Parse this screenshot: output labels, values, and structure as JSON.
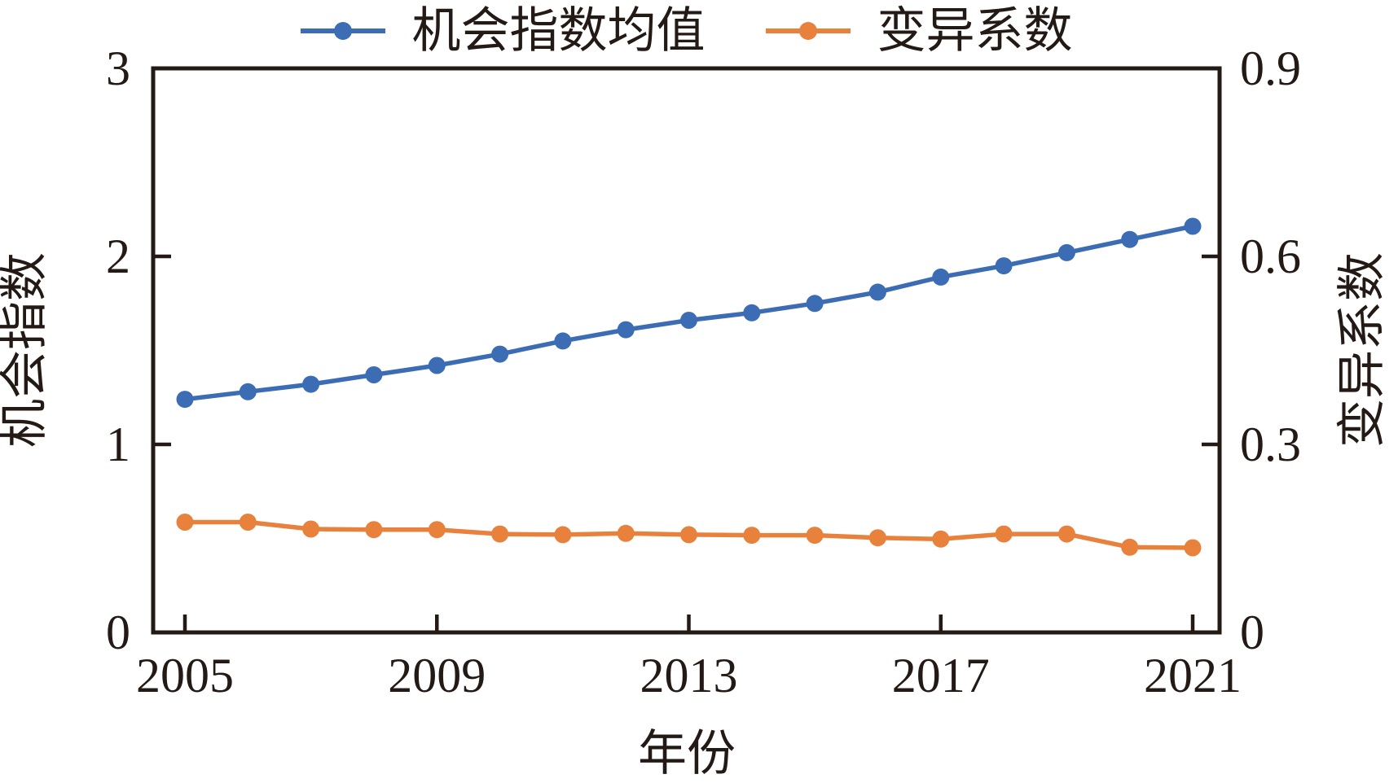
{
  "chart_data": {
    "type": "line",
    "grid": false,
    "legend_position": "top",
    "x": [
      2005,
      2006,
      2007,
      2008,
      2009,
      2010,
      2011,
      2012,
      2013,
      2014,
      2015,
      2016,
      2017,
      2018,
      2019,
      2020,
      2021
    ],
    "xlabel": "年份",
    "x_ticks": [
      2005,
      2009,
      2013,
      2017,
      2021
    ],
    "x_tick_labels": [
      "2005",
      "2009",
      "2013",
      "2017",
      "2021"
    ],
    "left_axis": {
      "label": "机会指数",
      "min": 0,
      "max": 3,
      "ticks": [
        0,
        1,
        2,
        3
      ],
      "tick_labels": [
        "0",
        "1",
        "2",
        "3"
      ]
    },
    "right_axis": {
      "label": "变异系数",
      "min": 0,
      "max": 0.9,
      "ticks": [
        0,
        0.3,
        0.6,
        0.9
      ],
      "tick_labels": [
        "0",
        "0.3",
        "0.6",
        "0.9"
      ]
    },
    "series": [
      {
        "name": "机会指数均值",
        "axis": "left",
        "color": "#3c6db4",
        "marker": "circle",
        "values": [
          1.24,
          1.28,
          1.32,
          1.37,
          1.42,
          1.48,
          1.55,
          1.61,
          1.66,
          1.7,
          1.75,
          1.81,
          1.89,
          1.95,
          2.02,
          2.09,
          2.16
        ]
      },
      {
        "name": "变异系数",
        "axis": "right",
        "color": "#e8813c",
        "marker": "circle",
        "values": [
          0.176,
          0.176,
          0.165,
          0.164,
          0.164,
          0.157,
          0.156,
          0.158,
          0.156,
          0.155,
          0.155,
          0.151,
          0.149,
          0.157,
          0.157,
          0.136,
          0.135
        ]
      }
    ]
  },
  "colors": {
    "ink": "#231a15",
    "blue": "#3c6db4",
    "orange": "#e8813c",
    "background": "#ffffff"
  }
}
